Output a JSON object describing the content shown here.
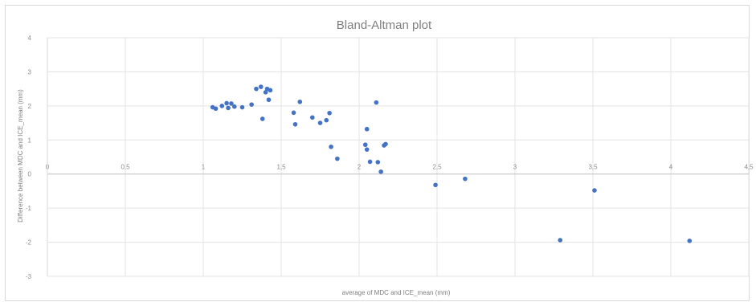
{
  "chart_data": {
    "type": "scatter",
    "title": "Bland-Altman plot",
    "xlabel": "average of MDC and ICE_mean (mm)",
    "ylabel": "Difference between MDC and ICE_mean (mm)",
    "xlim": [
      0,
      4.5
    ],
    "ylim": [
      -3,
      4
    ],
    "x_ticks": [
      0,
      0.5,
      1,
      1.5,
      2,
      2.5,
      3,
      3.5,
      4,
      4.5
    ],
    "x_tick_labels": [
      "0",
      "0,5",
      "1",
      "1,5",
      "2",
      "2,5",
      "3",
      "3,5",
      "4",
      "4,5"
    ],
    "y_ticks": [
      -3,
      -2,
      -1,
      0,
      1,
      2,
      3,
      4
    ],
    "y_tick_labels": [
      "-3",
      "-2",
      "-1",
      "0",
      "1",
      "2",
      "3",
      "4"
    ],
    "grid": true,
    "marker_color": "#4472c4",
    "series": [
      {
        "x": [
          1.06,
          1.08,
          1.12,
          1.15,
          1.16,
          1.18,
          1.2,
          1.25,
          1.31,
          1.34,
          1.37,
          1.4,
          1.41,
          1.42,
          1.43,
          1.38,
          1.58,
          1.59,
          1.62,
          1.7,
          1.75,
          1.79,
          1.81,
          1.82,
          1.86,
          2.04,
          2.05,
          2.05,
          2.07,
          2.11,
          2.12,
          2.14,
          2.16,
          2.17,
          2.49,
          2.68,
          3.29,
          3.51,
          4.12
        ],
        "y": [
          1.96,
          1.92,
          2.0,
          2.08,
          1.94,
          2.07,
          1.98,
          1.96,
          2.04,
          2.5,
          2.56,
          2.4,
          2.5,
          2.18,
          2.46,
          1.62,
          1.8,
          1.46,
          2.12,
          1.66,
          1.5,
          1.58,
          1.79,
          0.8,
          0.45,
          0.86,
          0.72,
          1.32,
          0.36,
          2.1,
          0.35,
          0.07,
          0.84,
          0.88,
          -0.32,
          -0.14,
          -1.94,
          -0.48,
          -1.96
        ]
      }
    ]
  }
}
